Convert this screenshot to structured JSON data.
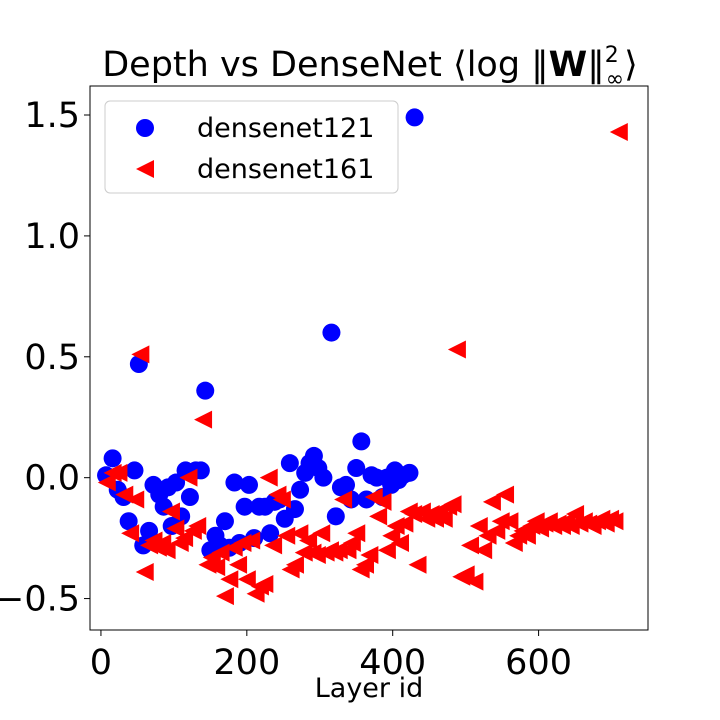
{
  "chart_data": {
    "type": "scatter",
    "title_prefix": "Depth vs DenseNet ",
    "title_langle": "⟨",
    "title_log": "log ",
    "title_norm_open": "‖",
    "title_W": "W",
    "title_norm_close": "‖",
    "title_sup": "2",
    "title_sub": "∞",
    "title_rangle": "⟩",
    "xlabel": "Layer id",
    "ylabel": "",
    "xlim": [
      -15,
      750
    ],
    "ylim": [
      -0.63,
      1.62
    ],
    "xticks": [
      0,
      200,
      400,
      600
    ],
    "xtick_labels": [
      "0",
      "200",
      "400",
      "600"
    ],
    "yticks": [
      -0.5,
      0.0,
      0.5,
      1.0,
      1.5
    ],
    "ytick_labels": [
      "−0.5",
      "0.0",
      "0.5",
      "1.0",
      "1.5"
    ],
    "legend_position": "top-left",
    "series": [
      {
        "name": "densenet121",
        "marker": "circle",
        "color": "#0000ff",
        "points": [
          [
            7,
            0.01
          ],
          [
            16,
            0.08
          ],
          [
            23,
            -0.05
          ],
          [
            31,
            -0.08
          ],
          [
            38,
            -0.18
          ],
          [
            46,
            0.03
          ],
          [
            52,
            0.47
          ],
          [
            58,
            -0.28
          ],
          [
            66,
            -0.22
          ],
          [
            72,
            -0.03
          ],
          [
            80,
            -0.07
          ],
          [
            86,
            -0.12
          ],
          [
            92,
            -0.04
          ],
          [
            97,
            -0.2
          ],
          [
            103,
            -0.02
          ],
          [
            110,
            -0.16
          ],
          [
            116,
            0.03
          ],
          [
            122,
            -0.08
          ],
          [
            130,
            0.03
          ],
          [
            137,
            0.03
          ],
          [
            143,
            0.36
          ],
          [
            150,
            -0.3
          ],
          [
            157,
            -0.24
          ],
          [
            163,
            -0.28
          ],
          [
            170,
            -0.18
          ],
          [
            176,
            -0.29
          ],
          [
            183,
            -0.02
          ],
          [
            190,
            -0.27
          ],
          [
            197,
            -0.12
          ],
          [
            203,
            -0.03
          ],
          [
            210,
            -0.25
          ],
          [
            217,
            -0.12
          ],
          [
            225,
            -0.12
          ],
          [
            232,
            -0.23
          ],
          [
            238,
            -0.1
          ],
          [
            245,
            -0.09
          ],
          [
            252,
            -0.17
          ],
          [
            259,
            0.06
          ],
          [
            266,
            -0.13
          ],
          [
            273,
            -0.05
          ],
          [
            280,
            0.02
          ],
          [
            286,
            0.06
          ],
          [
            292,
            0.09
          ],
          [
            298,
            0.04
          ],
          [
            305,
            0.0
          ],
          [
            316,
            0.6
          ],
          [
            322,
            -0.16
          ],
          [
            329,
            -0.04
          ],
          [
            336,
            -0.03
          ],
          [
            343,
            -0.09
          ],
          [
            350,
            0.04
          ],
          [
            357,
            0.15
          ],
          [
            364,
            -0.09
          ],
          [
            371,
            0.01
          ],
          [
            378,
            0.0
          ],
          [
            386,
            -0.08
          ],
          [
            392,
            0.0
          ],
          [
            398,
            -0.03
          ],
          [
            403,
            0.03
          ],
          [
            408,
            -0.01
          ],
          [
            414,
            0.01
          ],
          [
            423,
            0.02
          ],
          [
            430,
            1.49
          ]
        ]
      },
      {
        "name": "densenet161",
        "marker": "triangle-left",
        "color": "#ff0000",
        "points": [
          [
            8,
            -0.02
          ],
          [
            16,
            0.02
          ],
          [
            24,
            0.02
          ],
          [
            32,
            -0.07
          ],
          [
            40,
            -0.23
          ],
          [
            47,
            -0.09
          ],
          [
            54,
            0.51
          ],
          [
            60,
            -0.39
          ],
          [
            66,
            -0.28
          ],
          [
            72,
            -0.26
          ],
          [
            78,
            -0.29
          ],
          [
            84,
            -0.27
          ],
          [
            90,
            -0.3
          ],
          [
            96,
            -0.14
          ],
          [
            102,
            -0.21
          ],
          [
            108,
            -0.27
          ],
          [
            114,
            -0.25
          ],
          [
            120,
            0.0
          ],
          [
            126,
            -0.22
          ],
          [
            132,
            -0.2
          ],
          [
            140,
            0.24
          ],
          [
            146,
            -0.36
          ],
          [
            152,
            -0.33
          ],
          [
            158,
            -0.37
          ],
          [
            164,
            -0.31
          ],
          [
            170,
            -0.49
          ],
          [
            176,
            -0.42
          ],
          [
            182,
            -0.29
          ],
          [
            188,
            -0.36
          ],
          [
            194,
            -0.27
          ],
          [
            200,
            -0.42
          ],
          [
            206,
            -0.26
          ],
          [
            212,
            -0.48
          ],
          [
            218,
            -0.45
          ],
          [
            224,
            -0.44
          ],
          [
            230,
            0.0
          ],
          [
            236,
            -0.28
          ],
          [
            242,
            -0.07
          ],
          [
            248,
            -0.09
          ],
          [
            254,
            -0.24
          ],
          [
            260,
            -0.38
          ],
          [
            266,
            -0.36
          ],
          [
            272,
            -0.23
          ],
          [
            278,
            -0.31
          ],
          [
            284,
            -0.26
          ],
          [
            290,
            -0.31
          ],
          [
            296,
            -0.32
          ],
          [
            302,
            -0.23
          ],
          [
            308,
            -0.31
          ],
          [
            314,
            -0.3
          ],
          [
            320,
            -0.31
          ],
          [
            326,
            -0.3
          ],
          [
            332,
            -0.09
          ],
          [
            338,
            -0.3
          ],
          [
            344,
            -0.27
          ],
          [
            350,
            -0.23
          ],
          [
            356,
            -0.38
          ],
          [
            362,
            -0.36
          ],
          [
            368,
            -0.32
          ],
          [
            374,
            -0.08
          ],
          [
            380,
            -0.16
          ],
          [
            386,
            -0.1
          ],
          [
            392,
            -0.3
          ],
          [
            398,
            -0.24
          ],
          [
            404,
            -0.2
          ],
          [
            410,
            -0.27
          ],
          [
            416,
            -0.19
          ],
          [
            422,
            -0.14
          ],
          [
            428,
            -0.15
          ],
          [
            434,
            -0.36
          ],
          [
            440,
            -0.14
          ],
          [
            446,
            -0.17
          ],
          [
            452,
            -0.15
          ],
          [
            458,
            -0.17
          ],
          [
            464,
            -0.14
          ],
          [
            470,
            -0.17
          ],
          [
            476,
            -0.12
          ],
          [
            482,
            -0.11
          ],
          [
            488,
            0.53
          ],
          [
            494,
            -0.41
          ],
          [
            500,
            -0.4
          ],
          [
            506,
            -0.28
          ],
          [
            512,
            -0.43
          ],
          [
            518,
            -0.2
          ],
          [
            524,
            -0.3
          ],
          [
            530,
            -0.24
          ],
          [
            536,
            -0.1
          ],
          [
            542,
            -0.22
          ],
          [
            548,
            -0.18
          ],
          [
            554,
            -0.07
          ],
          [
            560,
            -0.18
          ],
          [
            566,
            -0.27
          ],
          [
            572,
            -0.24
          ],
          [
            578,
            -0.22
          ],
          [
            584,
            -0.24
          ],
          [
            590,
            -0.2
          ],
          [
            596,
            -0.18
          ],
          [
            602,
            -0.21
          ],
          [
            608,
            -0.19
          ],
          [
            614,
            -0.18
          ],
          [
            620,
            -0.2
          ],
          [
            626,
            -0.19
          ],
          [
            632,
            -0.2
          ],
          [
            638,
            -0.18
          ],
          [
            644,
            -0.2
          ],
          [
            650,
            -0.15
          ],
          [
            656,
            -0.19
          ],
          [
            662,
            -0.18
          ],
          [
            668,
            -0.19
          ],
          [
            674,
            -0.2
          ],
          [
            680,
            -0.18
          ],
          [
            686,
            -0.17
          ],
          [
            692,
            -0.19
          ],
          [
            698,
            -0.17
          ],
          [
            704,
            -0.18
          ],
          [
            710,
            1.43
          ]
        ]
      }
    ]
  }
}
